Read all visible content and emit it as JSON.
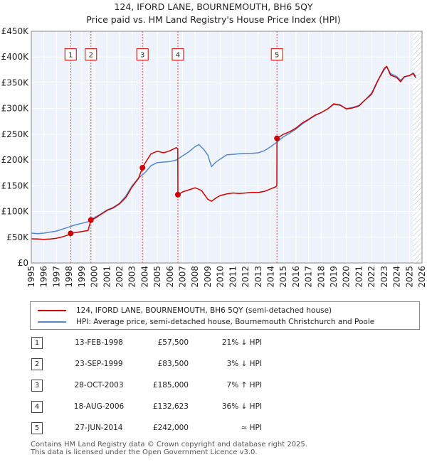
{
  "chart_data": {
    "type": "line",
    "title": "124, IFORD LANE, BOURNEMOUTH, BH6 5QY",
    "subtitle": "Price paid vs. HM Land Registry's House Price Index (HPI)",
    "xlim": [
      1995,
      2026
    ],
    "ylim": [
      0,
      450000
    ],
    "x_ticks": [
      1995,
      1996,
      1997,
      1998,
      1999,
      2000,
      2001,
      2002,
      2003,
      2004,
      2005,
      2006,
      2007,
      2008,
      2009,
      2010,
      2011,
      2012,
      2013,
      2014,
      2015,
      2016,
      2017,
      2018,
      2019,
      2020,
      2021,
      2022,
      2023,
      2024,
      2025,
      2026
    ],
    "y_ticks": [
      {
        "value": 0,
        "label": "£0"
      },
      {
        "value": 50000,
        "label": "£50K"
      },
      {
        "value": 100000,
        "label": "£100K"
      },
      {
        "value": 150000,
        "label": "£150K"
      },
      {
        "value": 200000,
        "label": "£200K"
      },
      {
        "value": 250000,
        "label": "£250K"
      },
      {
        "value": 300000,
        "label": "£300K"
      },
      {
        "value": 350000,
        "label": "£350K"
      },
      {
        "value": 400000,
        "label": "£400K"
      },
      {
        "value": 450000,
        "label": "£450K"
      }
    ],
    "future_shade_from": 2025.3,
    "series": [
      {
        "name": "124, IFORD LANE, BOURNEMOUTH, BH6 5QY (semi-detached house)",
        "color": "#cc0000",
        "points": [
          [
            1995.0,
            47000
          ],
          [
            1995.5,
            46500
          ],
          [
            1996.0,
            46000
          ],
          [
            1996.5,
            46500
          ],
          [
            1997.0,
            48000
          ],
          [
            1997.5,
            51000
          ],
          [
            1998.0,
            55000
          ],
          [
            1998.12,
            57500
          ],
          [
            1998.5,
            59000
          ],
          [
            1999.0,
            61000
          ],
          [
            1999.5,
            63000
          ],
          [
            1999.73,
            83500
          ],
          [
            2000.0,
            86000
          ],
          [
            2000.5,
            94000
          ],
          [
            2001.0,
            102000
          ],
          [
            2001.5,
            107000
          ],
          [
            2002.0,
            115000
          ],
          [
            2002.5,
            127000
          ],
          [
            2003.0,
            148000
          ],
          [
            2003.5,
            164000
          ],
          [
            2003.82,
            185000
          ],
          [
            2004.0,
            193000
          ],
          [
            2004.5,
            212000
          ],
          [
            2005.0,
            217000
          ],
          [
            2005.5,
            214000
          ],
          [
            2006.0,
            218000
          ],
          [
            2006.5,
            224000
          ],
          [
            2006.62,
            222000
          ],
          [
            2006.63,
            132623
          ],
          [
            2007.0,
            138000
          ],
          [
            2007.5,
            142000
          ],
          [
            2008.0,
            146000
          ],
          [
            2008.5,
            141000
          ],
          [
            2009.0,
            124000
          ],
          [
            2009.3,
            120000
          ],
          [
            2009.7,
            127000
          ],
          [
            2010.0,
            131000
          ],
          [
            2010.5,
            134000
          ],
          [
            2011.0,
            136000
          ],
          [
            2011.5,
            135000
          ],
          [
            2012.0,
            136000
          ],
          [
            2012.5,
            137000
          ],
          [
            2013.0,
            137000
          ],
          [
            2013.5,
            139000
          ],
          [
            2014.0,
            144000
          ],
          [
            2014.4,
            148000
          ],
          [
            2014.48,
            150000
          ],
          [
            2014.49,
            242000
          ],
          [
            2015.0,
            250000
          ],
          [
            2015.5,
            255000
          ],
          [
            2016.0,
            262000
          ],
          [
            2016.5,
            272000
          ],
          [
            2017.0,
            279000
          ],
          [
            2017.5,
            287000
          ],
          [
            2018.0,
            292000
          ],
          [
            2018.5,
            299000
          ],
          [
            2019.0,
            309000
          ],
          [
            2019.5,
            307000
          ],
          [
            2020.0,
            299000
          ],
          [
            2020.5,
            301000
          ],
          [
            2021.0,
            305000
          ],
          [
            2021.5,
            317000
          ],
          [
            2022.0,
            328000
          ],
          [
            2022.5,
            354000
          ],
          [
            2023.0,
            378000
          ],
          [
            2023.2,
            382000
          ],
          [
            2023.5,
            365000
          ],
          [
            2024.0,
            360000
          ],
          [
            2024.3,
            352000
          ],
          [
            2024.6,
            362000
          ],
          [
            2025.0,
            364000
          ],
          [
            2025.3,
            368000
          ],
          [
            2025.5,
            360000
          ]
        ]
      },
      {
        "name": "HPI: Average price, semi-detached house, Bournemouth Christchurch and Poole",
        "color": "#5588cc",
        "points": [
          [
            1995.0,
            58000
          ],
          [
            1995.5,
            57000
          ],
          [
            1996.0,
            58000
          ],
          [
            1996.5,
            60000
          ],
          [
            1997.0,
            62000
          ],
          [
            1997.5,
            66000
          ],
          [
            1998.0,
            70000
          ],
          [
            1998.5,
            74000
          ],
          [
            1999.0,
            77000
          ],
          [
            1999.5,
            80000
          ],
          [
            2000.0,
            88000
          ],
          [
            2000.5,
            95000
          ],
          [
            2001.0,
            103000
          ],
          [
            2001.5,
            108000
          ],
          [
            2002.0,
            116000
          ],
          [
            2002.5,
            130000
          ],
          [
            2003.0,
            150000
          ],
          [
            2003.5,
            165000
          ],
          [
            2004.0,
            175000
          ],
          [
            2004.5,
            189000
          ],
          [
            2005.0,
            195000
          ],
          [
            2005.5,
            196000
          ],
          [
            2006.0,
            197000
          ],
          [
            2006.5,
            200000
          ],
          [
            2007.0,
            208000
          ],
          [
            2007.5,
            216000
          ],
          [
            2008.0,
            226000
          ],
          [
            2008.3,
            230000
          ],
          [
            2008.7,
            220000
          ],
          [
            2009.0,
            210000
          ],
          [
            2009.3,
            187000
          ],
          [
            2009.6,
            195000
          ],
          [
            2010.0,
            202000
          ],
          [
            2010.5,
            210000
          ],
          [
            2011.0,
            211000
          ],
          [
            2011.5,
            212000
          ],
          [
            2012.0,
            213000
          ],
          [
            2012.5,
            213000
          ],
          [
            2013.0,
            214000
          ],
          [
            2013.5,
            218000
          ],
          [
            2014.0,
            226000
          ],
          [
            2014.5,
            235000
          ],
          [
            2015.0,
            245000
          ],
          [
            2015.5,
            252000
          ],
          [
            2016.0,
            260000
          ],
          [
            2016.5,
            270000
          ],
          [
            2017.0,
            278000
          ],
          [
            2017.5,
            286000
          ],
          [
            2018.0,
            292000
          ],
          [
            2018.5,
            299000
          ],
          [
            2019.0,
            308000
          ],
          [
            2019.5,
            306000
          ],
          [
            2020.0,
            300000
          ],
          [
            2020.5,
            302000
          ],
          [
            2021.0,
            306000
          ],
          [
            2021.5,
            317000
          ],
          [
            2022.0,
            330000
          ],
          [
            2022.5,
            355000
          ],
          [
            2023.0,
            375000
          ],
          [
            2023.2,
            381000
          ],
          [
            2023.5,
            368000
          ],
          [
            2024.0,
            362000
          ],
          [
            2024.3,
            355000
          ],
          [
            2024.6,
            361000
          ],
          [
            2025.0,
            364000
          ],
          [
            2025.3,
            369000
          ],
          [
            2025.5,
            363000
          ]
        ]
      }
    ],
    "sale_markers": [
      {
        "label": "1",
        "x": 1998.12,
        "y": 57500
      },
      {
        "label": "2",
        "x": 1999.73,
        "y": 83500
      },
      {
        "label": "3",
        "x": 2003.82,
        "y": 185000
      },
      {
        "label": "4",
        "x": 2006.63,
        "y": 132623
      },
      {
        "label": "5",
        "x": 2014.49,
        "y": 242000
      }
    ],
    "marker_label_y": 405000,
    "legend": [
      {
        "label": "124, IFORD LANE, BOURNEMOUTH, BH6 5QY (semi-detached house)",
        "color": "#cc0000"
      },
      {
        "label": "HPI: Average price, semi-detached house, Bournemouth Christchurch and Poole",
        "color": "#5588cc"
      }
    ]
  },
  "transactions": [
    {
      "num": "1",
      "date": "13-FEB-1998",
      "price": "£57,500",
      "hpi": "21% ↓ HPI"
    },
    {
      "num": "2",
      "date": "23-SEP-1999",
      "price": "£83,500",
      "hpi": "3% ↓ HPI"
    },
    {
      "num": "3",
      "date": "28-OCT-2003",
      "price": "£185,000",
      "hpi": "7% ↑ HPI"
    },
    {
      "num": "4",
      "date": "18-AUG-2006",
      "price": "£132,623",
      "hpi": "36% ↓ HPI"
    },
    {
      "num": "5",
      "date": "27-JUN-2014",
      "price": "£242,000",
      "hpi": "≈ HPI"
    }
  ],
  "footer": {
    "line1": "Contains HM Land Registry data © Crown copyright and database right 2025.",
    "line2": "This data is licensed under the Open Government Licence v3.0."
  }
}
